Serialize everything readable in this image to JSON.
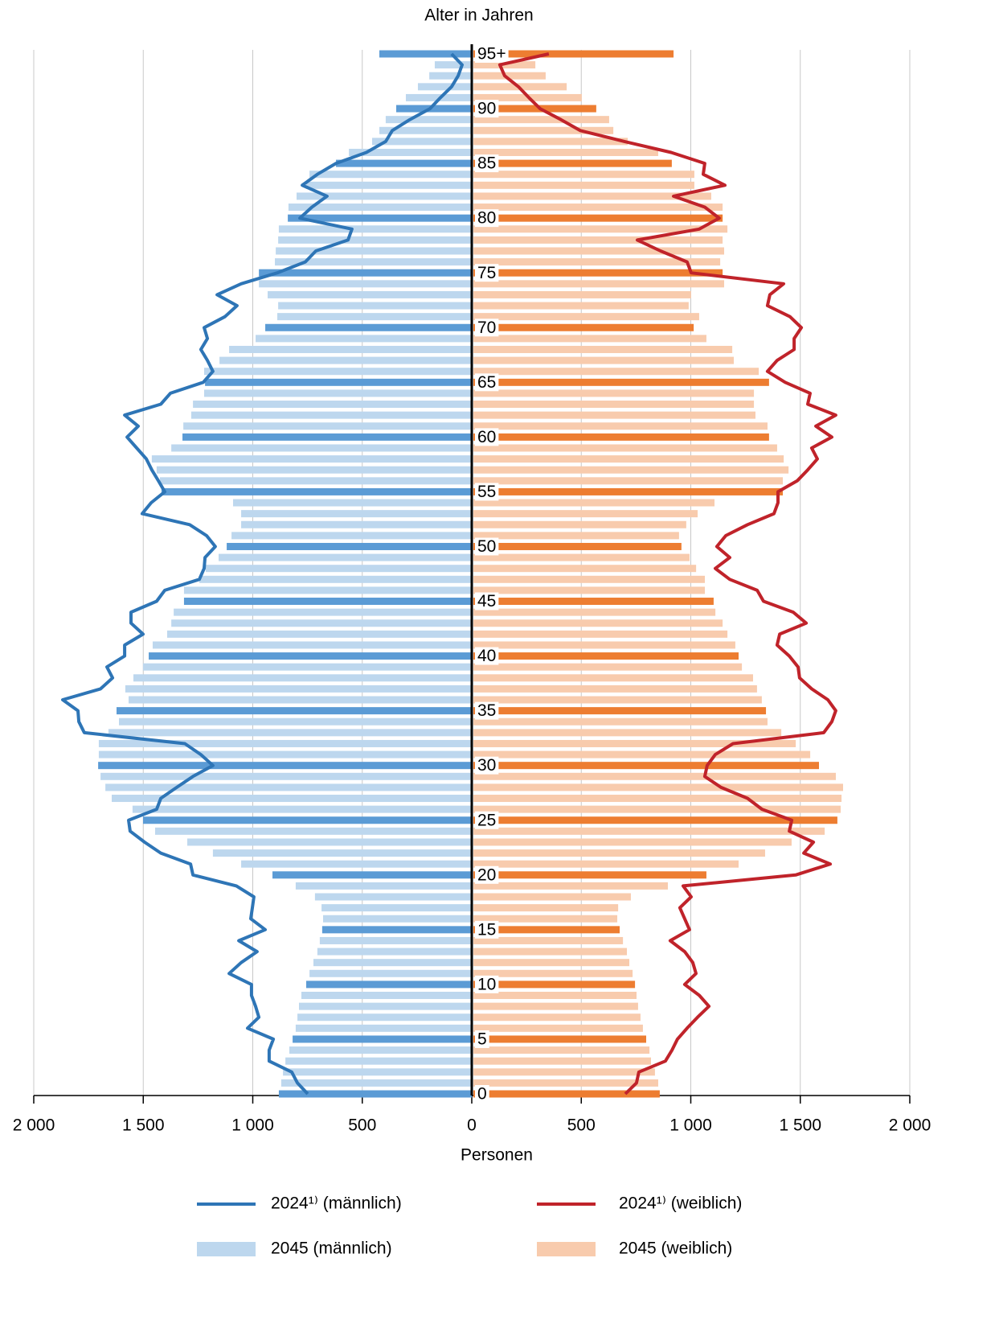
{
  "chart_data": {
    "type": "pyramid",
    "y_label": "Alter in Jahren",
    "x_label": "Personen",
    "categories": [
      0,
      null,
      null,
      null,
      null,
      5,
      null,
      null,
      null,
      null,
      10,
      null,
      null,
      null,
      null,
      15,
      null,
      null,
      null,
      null,
      20,
      null,
      null,
      null,
      null,
      25,
      null,
      null,
      null,
      null,
      30,
      null,
      null,
      null,
      null,
      35,
      null,
      null,
      null,
      null,
      40,
      null,
      null,
      null,
      null,
      45,
      null,
      null,
      null,
      null,
      50,
      null,
      null,
      null,
      null,
      55,
      null,
      null,
      null,
      null,
      60,
      null,
      null,
      null,
      null,
      65,
      null,
      null,
      null,
      null,
      70,
      null,
      null,
      null,
      null,
      75,
      null,
      null,
      null,
      null,
      80,
      null,
      null,
      null,
      null,
      85,
      null,
      null,
      null,
      null,
      90,
      null,
      null,
      null,
      null,
      "95+"
    ],
    "xlim": [
      0,
      2000
    ],
    "xticks": [
      0,
      500,
      {
        "value": 1000,
        "label": "1 000"
      },
      {
        "value": 1500,
        "label": "1 500"
      },
      {
        "value": 2000,
        "label": "2 000"
      }
    ],
    "grid": true,
    "series": [
      {
        "name": "2024¹⁾ (männlich)",
        "kind": "line",
        "side": "left",
        "color": "#2e75b6",
        "values": [
          749,
          796,
          822,
          925,
          925,
          906,
          1024,
          972,
          987,
          1006,
          1006,
          1108,
          1053,
          980,
          1064,
          943,
          1009,
          1002,
          995,
          1075,
          1273,
          1284,
          1420,
          1494,
          1560,
          1567,
          1439,
          1420,
          1347,
          1273,
          1182,
          1237,
          1310,
          1769,
          1794,
          1798,
          1868,
          1695,
          1640,
          1666,
          1585,
          1585,
          1501,
          1556,
          1556,
          1439,
          1402,
          1244,
          1222,
          1218,
          1171,
          1211,
          1288,
          1505,
          1464,
          1402,
          1431,
          1461,
          1486,
          1530,
          1574,
          1523,
          1585,
          1420,
          1376,
          1226,
          1182,
          1207,
          1237,
          1207,
          1222,
          1127,
          1072,
          1163,
          1053,
          888,
          760,
          712,
          565,
          547,
          785,
          730,
          661,
          774,
          705,
          620,
          481,
          393,
          363,
          283,
          191,
          143,
          92,
          62,
          44,
          92
        ]
      },
      {
        "name": "2024¹⁾ (weiblich)",
        "kind": "line",
        "side": "right",
        "color": "#c0232a",
        "values": [
          701,
          752,
          763,
          884,
          914,
          939,
          983,
          1031,
          1083,
          1039,
          972,
          1024,
          1009,
          972,
          906,
          994,
          972,
          950,
          1002,
          965,
          1479,
          1637,
          1516,
          1560,
          1450,
          1461,
          1325,
          1259,
          1138,
          1064,
          1075,
          1112,
          1193,
          1607,
          1644,
          1662,
          1626,
          1552,
          1497,
          1490,
          1450,
          1394,
          1406,
          1527,
          1468,
          1332,
          1303,
          1178,
          1112,
          1178,
          1119,
          1160,
          1259,
          1380,
          1398,
          1398,
          1486,
          1534,
          1578,
          1552,
          1644,
          1571,
          1662,
          1534,
          1545,
          1431,
          1350,
          1394,
          1472,
          1472,
          1505,
          1453,
          1350,
          1361,
          1424,
          1002,
          983,
          862,
          756,
          1039,
          1130,
          1064,
          921,
          1156,
          1057,
          1064,
          910,
          697,
          495,
          407,
          312,
          261,
          213,
          150,
          128,
          352
        ]
      },
      {
        "name": "2045 (männlich)",
        "kind": "bar",
        "side": "left",
        "color": "#bdd7ee",
        "highlight_color": "#5b9bd5",
        "values": [
          881,
          870,
          862,
          851,
          833,
          818,
          804,
          796,
          789,
          778,
          756,
          741,
          723,
          705,
          694,
          683,
          679,
          686,
          716,
          804,
          910,
          1053,
          1182,
          1299,
          1446,
          1501,
          1549,
          1644,
          1673,
          1695,
          1706,
          1703,
          1703,
          1659,
          1611,
          1622,
          1567,
          1582,
          1545,
          1501,
          1475,
          1457,
          1391,
          1372,
          1361,
          1314,
          1314,
          1244,
          1215,
          1156,
          1119,
          1097,
          1053,
          1053,
          1090,
          1417,
          1424,
          1439,
          1461,
          1372,
          1321,
          1317,
          1281,
          1273,
          1222,
          1218,
          1222,
          1152,
          1108,
          987,
          943,
          888,
          884,
          932,
          972,
          972,
          899,
          895,
          884,
          881,
          840,
          837,
          800,
          756,
          741,
          620,
          561,
          455,
          422,
          393,
          345,
          301,
          246,
          194,
          169,
          422
        ]
      },
      {
        "name": "2045 (weiblich)",
        "kind": "bar",
        "side": "right",
        "color": "#f8cbad",
        "highlight_color": "#ed7d31",
        "values": [
          851,
          844,
          829,
          811,
          804,
          789,
          774,
          763,
          752,
          745,
          738,
          727,
          712,
          701,
          683,
          668,
          657,
          661,
          719,
          888,
          1064,
          1211,
          1332,
          1453,
          1604,
          1662,
          1677,
          1681,
          1688,
          1655,
          1578,
          1538,
          1472,
          1406,
          1343,
          1336,
          1317,
          1295,
          1277,
          1226,
          1211,
          1196,
          1160,
          1138,
          1105,
          1097,
          1057,
          1057,
          1017,
          987,
          950,
          939,
          972,
          1024,
          1101,
          1413,
          1413,
          1439,
          1417,
          1387,
          1350,
          1343,
          1288,
          1281,
          1281,
          1350,
          1303,
          1189,
          1182,
          1064,
          1006,
          1031,
          983,
          994,
          1145,
          1138,
          1127,
          1145,
          1138,
          1160,
          1138,
          1138,
          1086,
          1009,
          1009,
          906,
          844,
          705,
          639,
          620,
          561,
          495,
          426,
          330,
          283,
          914
        ]
      }
    ]
  }
}
